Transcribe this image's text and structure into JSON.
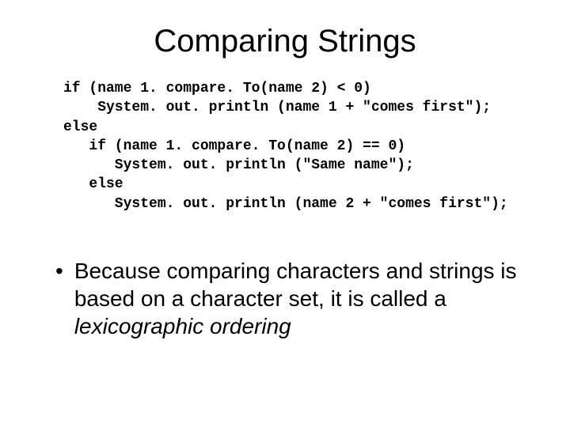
{
  "title": "Comparing Strings",
  "code": {
    "l1": "if (name 1. compare. To(name 2) < 0)",
    "l2": "    System. out. println (name 1 + \"comes first\");",
    "l3": "else",
    "l4": "   if (name 1. compare. To(name 2) == 0)",
    "l5": "      System. out. println (\"Same name\");",
    "l6": "   else",
    "l7": "      System. out. println (name 2 + \"comes first\");"
  },
  "bullet": {
    "dot": "•",
    "prefix": "Because comparing characters and strings is based on a character set, it is called a ",
    "italic": "lexicographic ordering"
  },
  "style": {
    "background": "#ffffff",
    "text_color": "#000000",
    "title_fontsize": 40,
    "code_fontsize": 18,
    "body_fontsize": 28,
    "code_font": "Courier New",
    "body_font": "Arial"
  }
}
